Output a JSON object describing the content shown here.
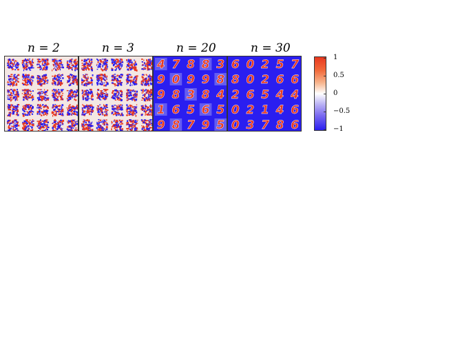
{
  "panels": [
    {
      "title": "n = 2",
      "style": "noise"
    },
    {
      "title": "n = 3",
      "style": "noise"
    },
    {
      "title": "n = 20",
      "style": "digits",
      "digits": [
        "4",
        "7",
        "8",
        "8",
        "3",
        "9",
        "0",
        "9",
        "9",
        "8",
        "9",
        "8",
        "3",
        "8",
        "4",
        "1",
        "6",
        "5",
        "6",
        "5",
        "9",
        "8",
        "7",
        "9",
        "5"
      ]
    },
    {
      "title": "n = 30",
      "style": "digits",
      "digits": [
        "6",
        "0",
        "2",
        "5",
        "7",
        "8",
        "0",
        "2",
        "6",
        "6",
        "2",
        "6",
        "5",
        "4",
        "4",
        "0",
        "2",
        "1",
        "4",
        "6",
        "0",
        "3",
        "7",
        "8",
        "6"
      ]
    }
  ],
  "colorbar": {
    "ticks": [
      "1",
      "0.5",
      "0",
      "−0.5",
      "−1"
    ],
    "colors": {
      "positive": "#e8381e",
      "zero": "#ffffff",
      "negative": "#2a1ef0"
    }
  }
}
